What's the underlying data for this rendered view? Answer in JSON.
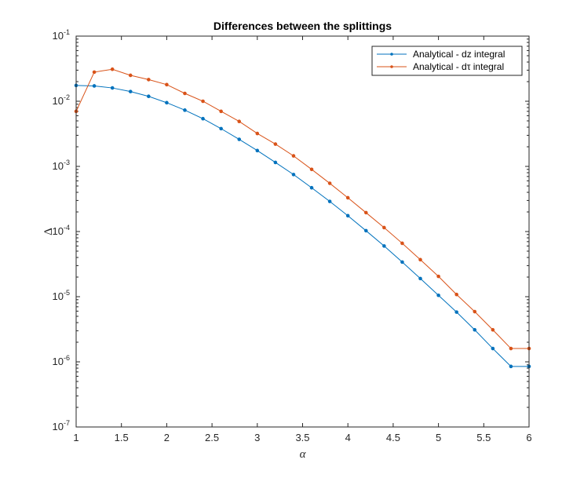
{
  "chart_data": {
    "type": "line",
    "title": "Differences between the splittings",
    "xlabel": "α",
    "ylabel": "Δ",
    "xlim": [
      1,
      6
    ],
    "ylim": [
      1e-07,
      0.1
    ],
    "yscale": "log",
    "grid": false,
    "legend_placement": "top-right",
    "x_ticks": [
      "1",
      "1.5",
      "2",
      "2.5",
      "3",
      "3.5",
      "4",
      "4.5",
      "5",
      "5.5",
      "6"
    ],
    "y_ticks": [
      {
        "base": "10",
        "exp": "-7"
      },
      {
        "base": "10",
        "exp": "-6"
      },
      {
        "base": "10",
        "exp": "-5"
      },
      {
        "base": "10",
        "exp": "-4"
      },
      {
        "base": "10",
        "exp": "-3"
      },
      {
        "base": "10",
        "exp": "-2"
      },
      {
        "base": "10",
        "exp": "-1"
      }
    ],
    "x": [
      1.0,
      1.2,
      1.4,
      1.6,
      1.8,
      2.0,
      2.2,
      2.4,
      2.6,
      2.8,
      3.0,
      3.2,
      3.4,
      3.6,
      3.8,
      4.0,
      4.2,
      4.4,
      4.6,
      4.8,
      5.0,
      5.2,
      5.4,
      5.6,
      5.8,
      6.0
    ],
    "series": [
      {
        "name": "Analytical - dz integral",
        "color": "#0072BD",
        "values": [
          0.0175,
          0.0172,
          0.016,
          0.0141,
          0.0119,
          0.0095,
          0.0073,
          0.0054,
          0.0038,
          0.0026,
          0.00175,
          0.00115,
          0.00075,
          0.00047,
          0.00029,
          0.000175,
          0.000103,
          6e-05,
          3.4e-05,
          1.9e-05,
          1.05e-05,
          5.8e-06,
          3.1e-06,
          1.6e-06,
          8.5e-07,
          8.5e-07
        ]
      },
      {
        "name": "Analytical - dτ integral",
        "color": "#D95319",
        "values": [
          0.007,
          0.028,
          0.031,
          0.025,
          0.0215,
          0.018,
          0.0132,
          0.01,
          0.007,
          0.0049,
          0.0032,
          0.0022,
          0.00145,
          0.0009,
          0.00055,
          0.00033,
          0.000195,
          0.000115,
          6.6e-05,
          3.7e-05,
          2.05e-05,
          1.08e-05,
          5.9e-06,
          3.1e-06,
          1.6e-06,
          1.6e-06
        ]
      }
    ]
  }
}
